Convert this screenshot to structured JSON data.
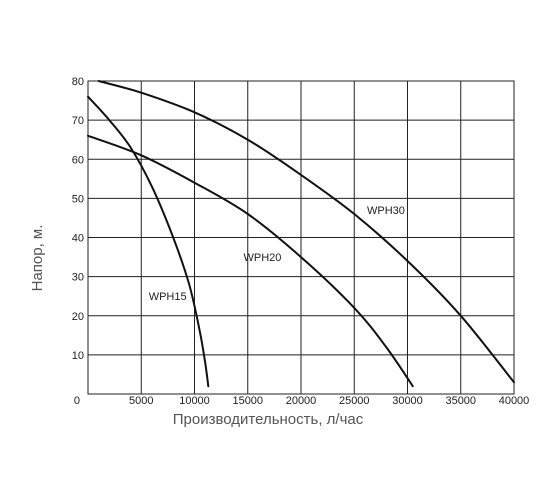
{
  "chart_data": {
    "type": "line",
    "xlabel": "Производительность, л/час",
    "ylabel": "Напор, м.",
    "xlim": [
      0,
      40000
    ],
    "ylim": [
      0,
      80
    ],
    "grid": true,
    "x_ticks": [
      0,
      5000,
      10000,
      15000,
      20000,
      25000,
      30000,
      35000,
      40000
    ],
    "y_ticks": [
      10,
      20,
      30,
      40,
      50,
      60,
      70,
      80
    ],
    "series": [
      {
        "name": "WPH15",
        "x": [
          0,
          2000,
          4000,
          6000,
          8000,
          9500,
          10500,
          11000,
          11300
        ],
        "y": [
          76,
          70,
          63,
          53,
          40,
          28,
          16,
          8,
          2
        ]
      },
      {
        "name": "WPH20",
        "x": [
          0,
          5000,
          10000,
          15000,
          20000,
          25000,
          28000,
          30500
        ],
        "y": [
          66,
          61,
          54,
          46,
          35,
          22,
          12,
          2
        ]
      },
      {
        "name": "WPH30",
        "x": [
          1000,
          5000,
          10000,
          15000,
          20000,
          25000,
          30000,
          35000,
          40000
        ],
        "y": [
          80,
          77,
          72,
          65,
          56,
          46,
          34,
          20,
          3
        ]
      }
    ],
    "annotations": [
      {
        "text": "WPH15",
        "x": 5700,
        "y": 24
      },
      {
        "text": "WPH20",
        "x": 14600,
        "y": 34
      },
      {
        "text": "WPH30",
        "x": 26200,
        "y": 46
      }
    ]
  }
}
